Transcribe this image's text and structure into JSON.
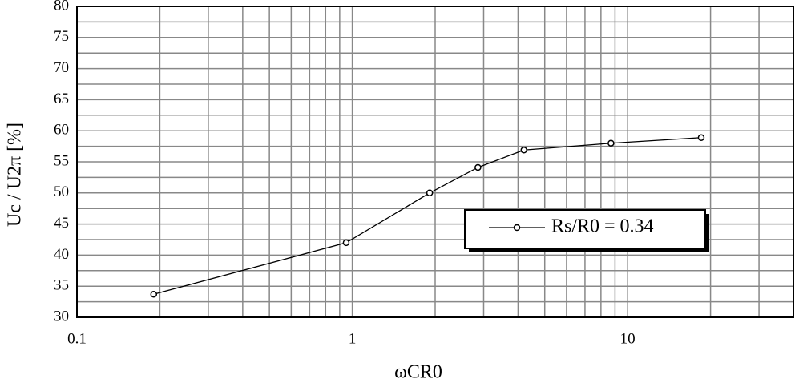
{
  "chart_data": {
    "type": "line",
    "x_label": "ωCR0",
    "y_label": "Uc / U2π  [%]",
    "x": [
      0.19,
      0.95,
      1.91,
      2.86,
      4.2,
      8.7,
      18.5
    ],
    "series": [
      {
        "name": "Rs/R0 = 0.34",
        "color": "#000000",
        "values": [
          33.7,
          42.0,
          50.0,
          54.1,
          56.9,
          58.0,
          58.9
        ]
      }
    ],
    "xlim": [
      0.1,
      40
    ],
    "xticks": [
      0.1,
      1,
      10
    ],
    "x_log": true,
    "x_minor_ticks": [
      0.2,
      0.3,
      0.4,
      0.5,
      0.6,
      0.7,
      0.8,
      0.9,
      2,
      3,
      4,
      5,
      6,
      7,
      8,
      9,
      20,
      30
    ],
    "ylim": [
      30,
      80
    ],
    "yticks": [
      30,
      35,
      40,
      45,
      50,
      55,
      60,
      65,
      70,
      75,
      80
    ],
    "y_minor_ticks": [
      32.5,
      37.5,
      42.5,
      47.5,
      52.5,
      57.5,
      62.5,
      67.5,
      72.5,
      77.5
    ],
    "grid": true,
    "legend": "right"
  }
}
